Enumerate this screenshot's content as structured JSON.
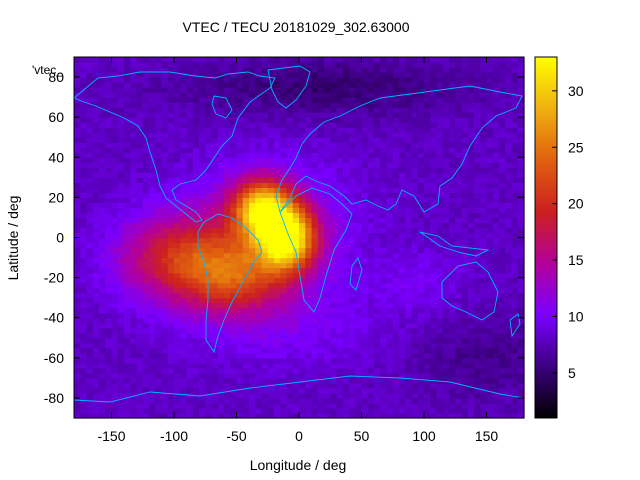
{
  "chart_data": {
    "type": "heatmap",
    "title": "VTEC / TECU 20181029_302.63000",
    "xlabel": "Longitude / deg",
    "ylabel": "Latitude / deg",
    "key_label": "'vtec_",
    "xlim": [
      -180,
      180
    ],
    "ylim": [
      -90,
      90
    ],
    "xticks": [
      -150,
      -100,
      -50,
      0,
      50,
      100,
      150
    ],
    "yticks": [
      -80,
      -60,
      -40,
      -20,
      0,
      20,
      40,
      60,
      80
    ],
    "colorbar": {
      "min": 1,
      "max": 33,
      "ticks": [
        5,
        10,
        15,
        20,
        25,
        30
      ]
    },
    "background_value": 8,
    "blobs": [
      {
        "lon": -10,
        "lat": 0,
        "sx": 16,
        "sy": 11,
        "amp": 23
      },
      {
        "lon": -30,
        "lat": 15,
        "sx": 16,
        "sy": 10,
        "amp": 19
      },
      {
        "lon": -95,
        "lat": -10,
        "sx": 35,
        "sy": 15,
        "amp": 11
      },
      {
        "lon": -50,
        "lat": -20,
        "sx": 30,
        "sy": 13,
        "amp": 10
      },
      {
        "lon": -25,
        "lat": 5,
        "sx": 45,
        "sy": 22,
        "amp": 5
      },
      {
        "lon": -5,
        "lat": -45,
        "sx": 55,
        "sy": 14,
        "amp": 2
      },
      {
        "lon": 20,
        "lat": 75,
        "sx": 80,
        "sy": 10,
        "amp": -3
      },
      {
        "lon": 150,
        "lat": -60,
        "sx": 40,
        "sy": 15,
        "amp": -2
      },
      {
        "lon": 95,
        "lat": -22,
        "sx": 25,
        "sy": 10,
        "amp": 2
      }
    ]
  },
  "colors": {
    "coastline": "#00b4ff",
    "palette": [
      "#000000",
      "#3d0080",
      "#7a00ff",
      "#b4009a",
      "#cc2020",
      "#e0600e",
      "#f0b010",
      "#ffff00"
    ]
  }
}
